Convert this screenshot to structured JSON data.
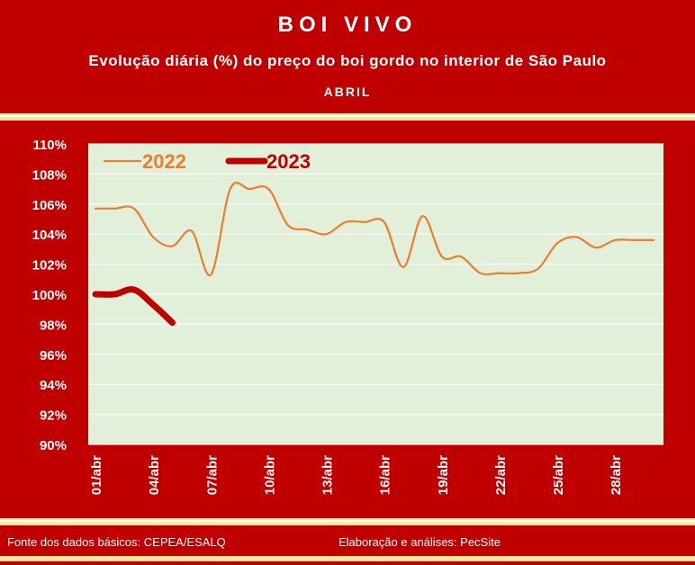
{
  "header": {
    "title": "BOI VIVO",
    "subtitle": "Evolução diária (%) do preço do boi gordo no interior de São Paulo",
    "period": "ABRIL"
  },
  "footer": {
    "source": "Fonte dos dados básicos: CEPEA/ESALQ",
    "credit": "Elaboração e análises: PecSite"
  },
  "colors": {
    "background": "#c00000",
    "plot_area": "#e2f0d9",
    "series_2022": "#ed7d31",
    "series_2023": "#c00000",
    "stripe": "#ffe699",
    "text": "#ffffff"
  },
  "chart_data": {
    "type": "line",
    "title": "BOI VIVO",
    "subtitle": "Evolução diária (%) do preço do boi gordo no interior de São Paulo",
    "xlabel": "ABRIL",
    "ylabel": "",
    "ylim": [
      90,
      110
    ],
    "ytick_step": 2,
    "y_format": "percent",
    "x_days": [
      1,
      30
    ],
    "x_ticks": [
      {
        "day": 1,
        "label": "01/abr"
      },
      {
        "day": 4,
        "label": "04/abr"
      },
      {
        "day": 7,
        "label": "07/abr"
      },
      {
        "day": 10,
        "label": "10/abr"
      },
      {
        "day": 13,
        "label": "13/abr"
      },
      {
        "day": 16,
        "label": "16/abr"
      },
      {
        "day": 19,
        "label": "19/abr"
      },
      {
        "day": 22,
        "label": "22/abr"
      },
      {
        "day": 25,
        "label": "25/abr"
      },
      {
        "day": 28,
        "label": "28/abr"
      }
    ],
    "grid": true,
    "legend_position": "top-left",
    "series": [
      {
        "name": "2022",
        "x": [
          1,
          2,
          3,
          4,
          5,
          6,
          7,
          8,
          9,
          10,
          11,
          12,
          13,
          14,
          15,
          16,
          17,
          18,
          19,
          20,
          21,
          22,
          23,
          24,
          25,
          26,
          27,
          28,
          29,
          30
        ],
        "y": [
          105.7,
          105.7,
          105.7,
          103.8,
          103.2,
          104.2,
          101.3,
          107.0,
          107.0,
          107.0,
          104.6,
          104.3,
          104.0,
          104.8,
          104.8,
          104.8,
          101.8,
          105.2,
          102.5,
          102.5,
          101.4,
          101.4,
          101.4,
          101.7,
          103.4,
          103.8,
          103.1,
          103.6,
          103.6,
          103.6
        ]
      },
      {
        "name": "2023",
        "x": [
          1,
          2,
          3,
          4,
          5
        ],
        "y": [
          100.0,
          100.0,
          100.3,
          99.3,
          98.1
        ]
      }
    ]
  }
}
